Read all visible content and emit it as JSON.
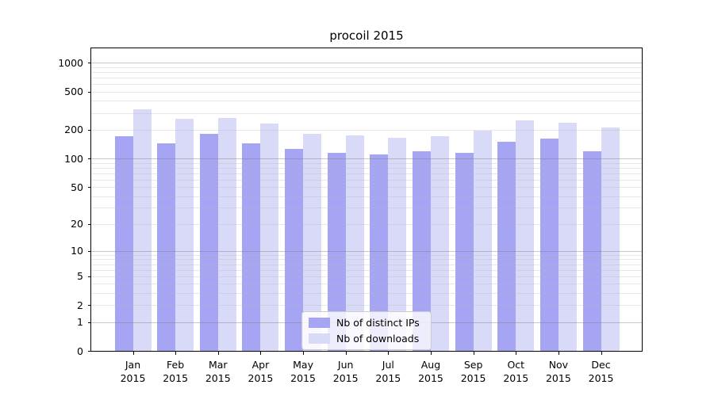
{
  "title": "procoil 2015",
  "colors": {
    "distinct_ips_bar": "#a5a5f3",
    "downloads_bar": "#d9d9f8",
    "axis": "#000000",
    "grid_major": "#c0c0c0",
    "grid_minor": "#e9e9e9",
    "legend_border": "#cccccc"
  },
  "legend": {
    "items": [
      {
        "label": "Nb of distinct IPs",
        "color": "#a5a5f3"
      },
      {
        "label": "Nb of downloads",
        "color": "#d9d9f8"
      }
    ]
  },
  "chart_data": {
    "type": "bar",
    "title": "procoil 2015",
    "categories": [
      "Jan\n2015",
      "Feb\n2015",
      "Mar\n2015",
      "Apr\n2015",
      "May\n2015",
      "Jun\n2015",
      "Jul\n2015",
      "Aug\n2015",
      "Sep\n2015",
      "Oct\n2015",
      "Nov\n2015",
      "Dec\n2015"
    ],
    "series": [
      {
        "name": "Nb of distinct IPs",
        "color": "#a5a5f3",
        "values": [
          170,
          145,
          180,
          143,
          126,
          115,
          110,
          120,
          115,
          150,
          161,
          119
        ]
      },
      {
        "name": "Nb of downloads",
        "color": "#d9d9f8",
        "values": [
          330,
          262,
          267,
          231,
          182,
          174,
          165,
          170,
          197,
          250,
          236,
          210
        ]
      }
    ],
    "xlabel": "",
    "ylabel": "",
    "yscale": "log1p",
    "yticks": [
      0,
      1,
      2,
      5,
      10,
      20,
      50,
      100,
      200,
      500,
      1000
    ],
    "ylim": [
      0,
      1450
    ],
    "grid": true,
    "grid_over_bars": true,
    "legend_position": "lower center"
  }
}
